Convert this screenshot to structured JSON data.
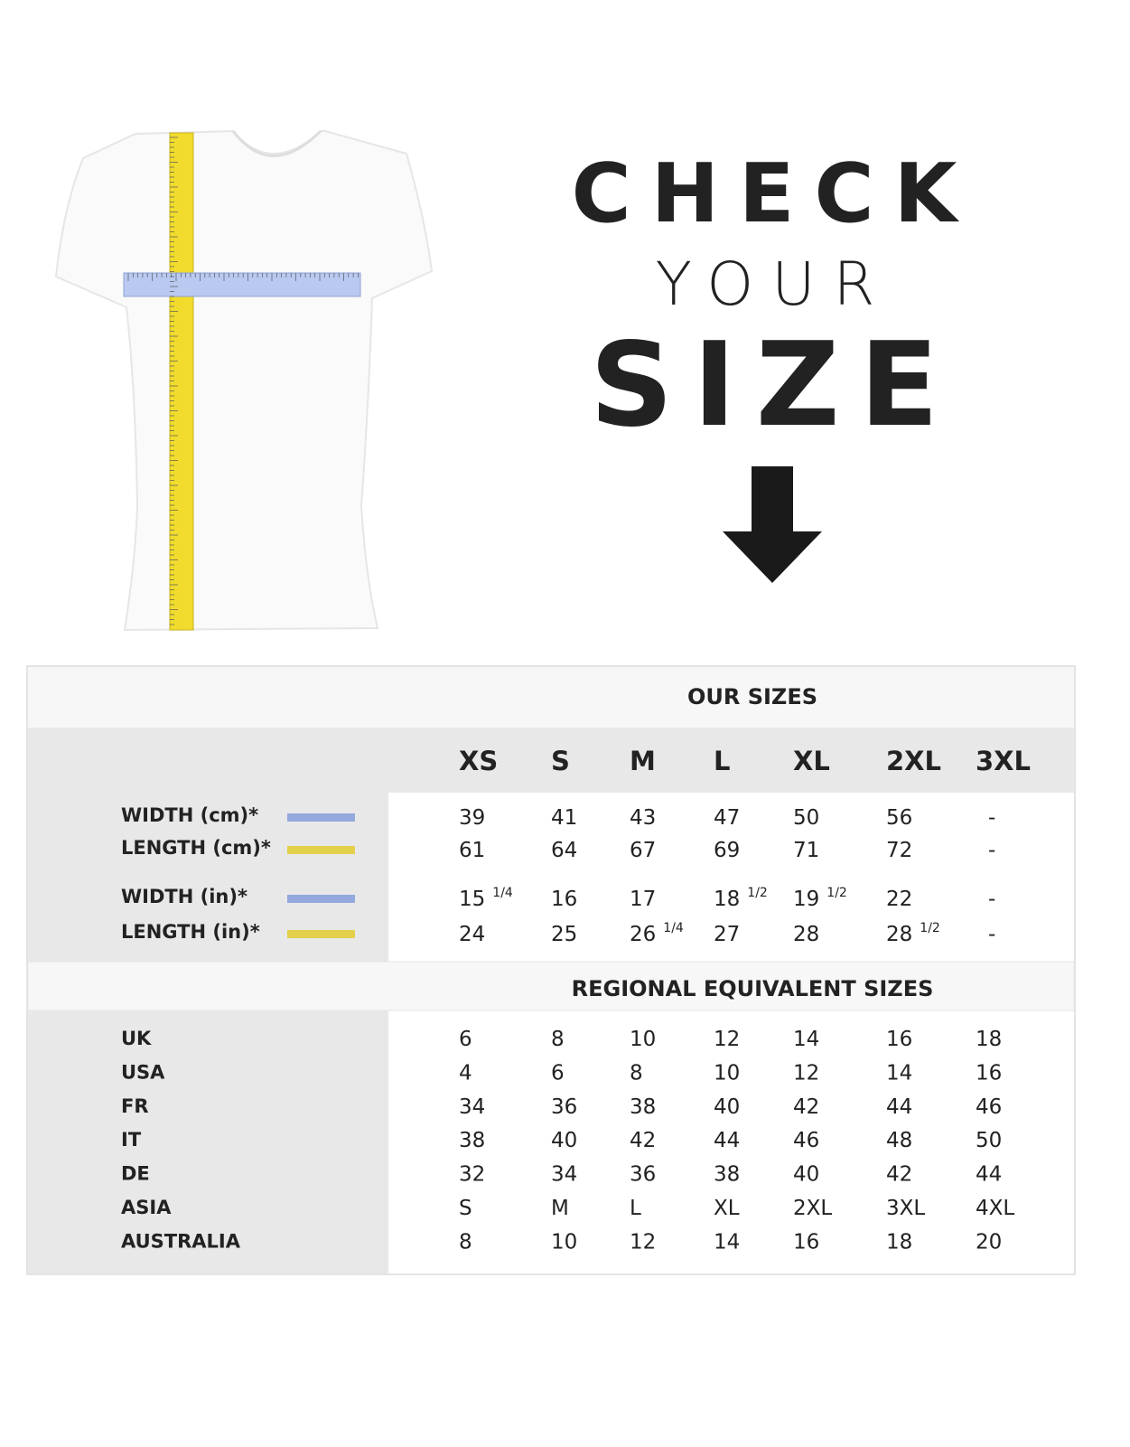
{
  "header": {
    "line1": "CHECK",
    "line2": "YOUR",
    "line3": "SIZE"
  },
  "table": {
    "title": "OUR SIZES",
    "sizes": [
      "XS",
      "S",
      "M",
      "L",
      "XL",
      "2XL",
      "3XL"
    ],
    "measurement_groups": [
      [
        {
          "label": "WIDTH (cm)*",
          "color": "#93a9dd",
          "values": [
            "39",
            "41",
            "43",
            "47",
            "50",
            "56",
            "-"
          ]
        },
        {
          "label": "LENGTH (cm)*",
          "color": "#e3d04b",
          "values": [
            "61",
            "64",
            "67",
            "69",
            "71",
            "72",
            "-"
          ]
        }
      ],
      [
        {
          "label": "WIDTH (in)*",
          "color": "#93a9dd",
          "values": [
            {
              "main": "15",
              "sup": "1/4"
            },
            "16",
            "17",
            {
              "main": "18",
              "sup": "1/2"
            },
            {
              "main": "19",
              "sup": "1/2"
            },
            "22",
            "-"
          ]
        },
        {
          "label": "LENGTH (in)*",
          "color": "#e3d04b",
          "values": [
            "24",
            "25",
            {
              "main": "26",
              "sup": "1/4"
            },
            "27",
            "28",
            {
              "main": "28",
              "sup": "1/2"
            },
            "-"
          ]
        }
      ]
    ],
    "regional_title": "REGIONAL EQUIVALENT SIZES",
    "regional_rows": [
      {
        "label": "UK",
        "values": [
          "6",
          "8",
          "10",
          "12",
          "14",
          "16",
          "18"
        ]
      },
      {
        "label": "USA",
        "values": [
          "4",
          "6",
          "8",
          "10",
          "12",
          "14",
          "16"
        ]
      },
      {
        "label": "FR",
        "values": [
          "34",
          "36",
          "38",
          "40",
          "42",
          "44",
          "46"
        ]
      },
      {
        "label": "IT",
        "values": [
          "38",
          "40",
          "42",
          "44",
          "46",
          "48",
          "50"
        ]
      },
      {
        "label": "DE",
        "values": [
          "32",
          "34",
          "36",
          "38",
          "40",
          "42",
          "44"
        ]
      },
      {
        "label": "ASIA",
        "values": [
          "S",
          "M",
          "L",
          "XL",
          "2XL",
          "3XL",
          "4XL"
        ]
      },
      {
        "label": "AUSTRALIA",
        "values": [
          "8",
          "10",
          "12",
          "14",
          "16",
          "18",
          "20"
        ]
      }
    ]
  }
}
